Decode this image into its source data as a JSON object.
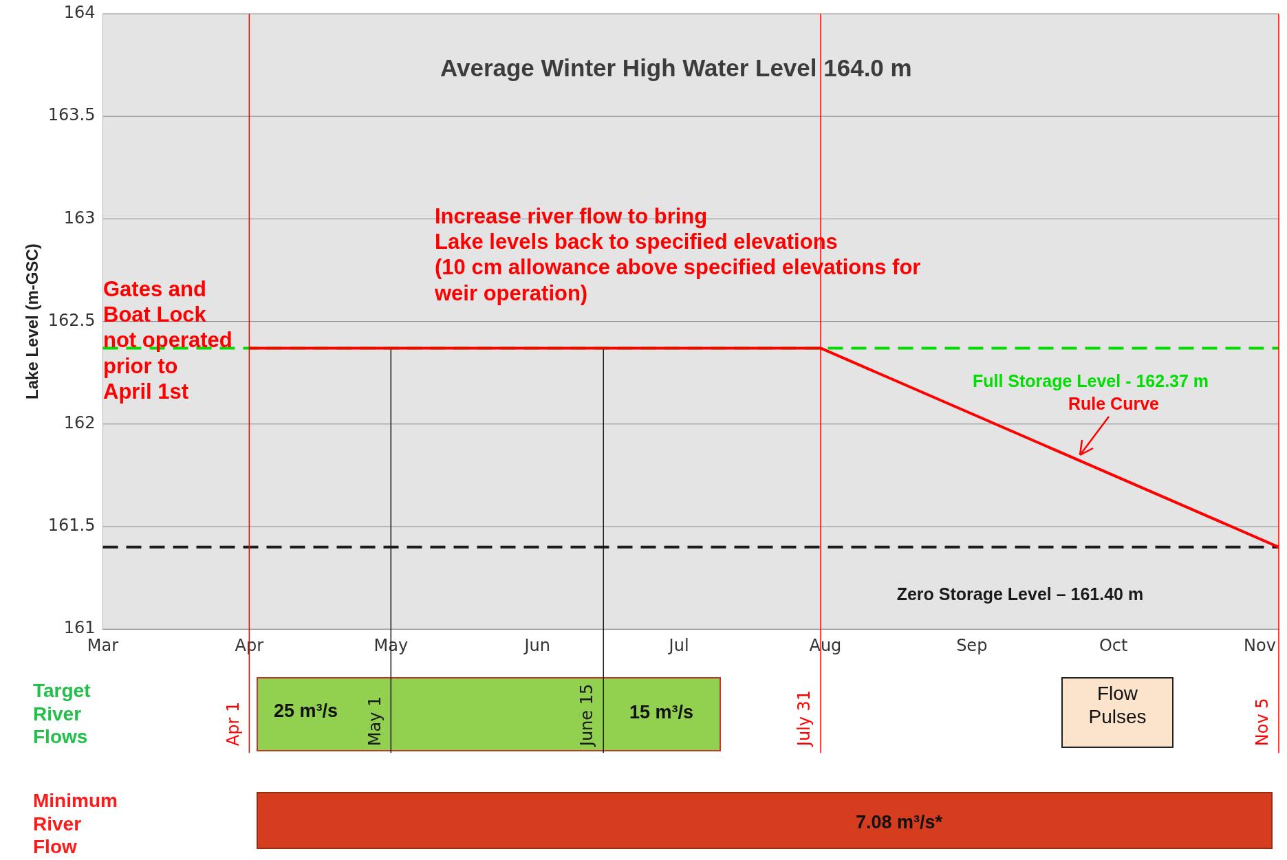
{
  "chart_data": {
    "type": "line",
    "ylabel": "Lake Level (m-GSC)",
    "xlim": [
      "--03-01",
      "--11-05"
    ],
    "xticks": [
      {
        "value": "--03-01",
        "label": "Mar"
      },
      {
        "value": "--04-01",
        "label": "Apr"
      },
      {
        "value": "--05-01",
        "label": "May"
      },
      {
        "value": "--06-01",
        "label": "Jun"
      },
      {
        "value": "--07-01",
        "label": "Jul"
      },
      {
        "value": "--08-01",
        "label": "Aug"
      },
      {
        "value": "--09-01",
        "label": "Sep"
      },
      {
        "value": "--10-01",
        "label": "Oct"
      },
      {
        "value": "--11-01",
        "label": "Nov"
      }
    ],
    "ylim": [
      161,
      164
    ],
    "yticks": [
      161,
      161.5,
      162,
      162.5,
      163,
      163.5,
      164
    ],
    "grid": "y",
    "legend": false,
    "marker": "none",
    "line_style": "solid",
    "series": [
      {
        "name": "Rule Curve",
        "color": "#ff0000",
        "x": [
          "--04-01",
          "--07-31",
          "--11-05"
        ],
        "values": [
          162.37,
          162.37,
          161.4
        ]
      }
    ],
    "ref_lines": [
      {
        "axis": "y",
        "value": 162.37,
        "label": "Full Storage Level - 162.37 m",
        "color": "#00dd00",
        "line_style": "dashed"
      },
      {
        "axis": "y",
        "value": 161.4,
        "label": "Zero Storage Level – 161.40 m",
        "color": "#1a1a1a",
        "line_style": "dashed"
      },
      {
        "axis": "x",
        "value": "--04-01",
        "label": "Apr 1",
        "color": "#ff0000",
        "line_style": "solid"
      },
      {
        "axis": "x",
        "value": "--05-01",
        "label": "May 1",
        "color": "#1a1a1a",
        "line_style": "solid"
      },
      {
        "axis": "x",
        "value": "--06-15",
        "label": "June 15",
        "color": "#1a1a1a",
        "line_style": "solid"
      },
      {
        "axis": "x",
        "value": "--07-31",
        "label": "July 31",
        "color": "#ff0000",
        "line_style": "solid"
      },
      {
        "axis": "x",
        "value": "--11-05",
        "label": "Nov 5",
        "color": "#ff0000",
        "line_style": "solid"
      }
    ],
    "annotations": [
      "Average Winter High Water Level 164.0 m",
      "Increase river flow to bring\nLake levels back to specified elevations\n(10 cm allowance above specified elevations for\nweir operation)",
      "Gates and\nBoat Lock\nnot operated\nprior to\nApril 1st",
      "Target\nRiver\nFlows",
      "25 m³/s",
      "15 m³/s",
      "Flow\nPulses",
      "Minimum\nRiver\nFlow",
      "7.08 m³/s*"
    ]
  }
}
